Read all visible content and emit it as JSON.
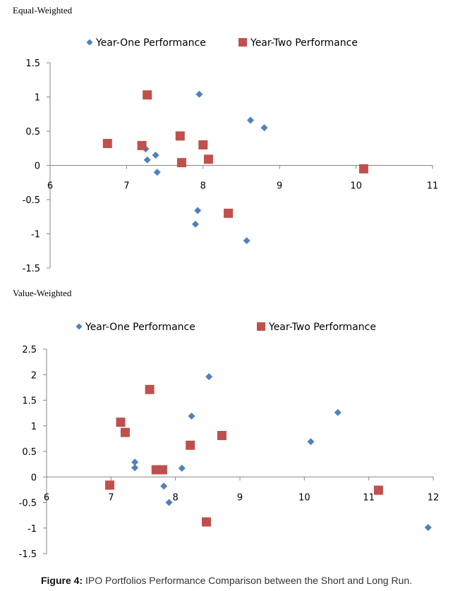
{
  "chart_data": [
    {
      "type": "scatter",
      "title": "Equal-Weighted",
      "xlim": [
        6,
        11
      ],
      "ylim": [
        -1.5,
        1.5
      ],
      "x_ticks": [
        6,
        7,
        8,
        9,
        10,
        11
      ],
      "y_ticks": [
        1.5,
        1,
        0.5,
        0,
        -0.5,
        -1,
        -1.5
      ],
      "legend_position": "top",
      "series": [
        {
          "name": "Year-One Performance",
          "marker": "diamond",
          "color": "#4F81BD",
          "points": [
            {
              "x": 7.95,
              "y": 1.04
            },
            {
              "x": 8.62,
              "y": 0.66
            },
            {
              "x": 8.8,
              "y": 0.55
            },
            {
              "x": 7.25,
              "y": 0.24
            },
            {
              "x": 7.38,
              "y": 0.15
            },
            {
              "x": 7.27,
              "y": 0.08
            },
            {
              "x": 7.4,
              "y": -0.1
            },
            {
              "x": 7.93,
              "y": -0.66
            },
            {
              "x": 7.9,
              "y": -0.86
            },
            {
              "x": 8.57,
              "y": -1.1
            }
          ]
        },
        {
          "name": "Year-Two Performance",
          "marker": "square",
          "color": "#C0504D",
          "points": [
            {
              "x": 7.27,
              "y": 1.03
            },
            {
              "x": 6.75,
              "y": 0.32
            },
            {
              "x": 7.2,
              "y": 0.29
            },
            {
              "x": 7.7,
              "y": 0.43
            },
            {
              "x": 8.0,
              "y": 0.3
            },
            {
              "x": 8.07,
              "y": 0.09
            },
            {
              "x": 7.72,
              "y": 0.04
            },
            {
              "x": 8.33,
              "y": -0.7
            },
            {
              "x": 10.1,
              "y": -0.05
            }
          ]
        }
      ]
    },
    {
      "type": "scatter",
      "title": "Value-Weighted",
      "xlim": [
        6,
        12
      ],
      "ylim": [
        -1.5,
        2.5
      ],
      "x_ticks": [
        6,
        7,
        8,
        9,
        10,
        11,
        12
      ],
      "y_ticks": [
        2.5,
        2,
        1.5,
        1,
        0.5,
        0,
        -0.5,
        -1,
        -1.5
      ],
      "legend_position": "top",
      "series": [
        {
          "name": "Year-One Performance",
          "marker": "diamond",
          "color": "#4F81BD",
          "points": [
            {
              "x": 8.52,
              "y": 1.96
            },
            {
              "x": 8.25,
              "y": 1.19
            },
            {
              "x": 10.52,
              "y": 1.26
            },
            {
              "x": 10.1,
              "y": 0.69
            },
            {
              "x": 7.37,
              "y": 0.29
            },
            {
              "x": 7.37,
              "y": 0.18
            },
            {
              "x": 8.1,
              "y": 0.17
            },
            {
              "x": 7.82,
              "y": -0.18
            },
            {
              "x": 7.9,
              "y": -0.5
            },
            {
              "x": 11.92,
              "y": -0.99
            }
          ]
        },
        {
          "name": "Year-Two Performance",
          "marker": "square",
          "color": "#C0504D",
          "points": [
            {
              "x": 7.6,
              "y": 1.71
            },
            {
              "x": 7.15,
              "y": 1.07
            },
            {
              "x": 7.22,
              "y": 0.87
            },
            {
              "x": 8.23,
              "y": 0.62
            },
            {
              "x": 8.72,
              "y": 0.81
            },
            {
              "x": 7.7,
              "y": 0.14
            },
            {
              "x": 7.8,
              "y": 0.14
            },
            {
              "x": 6.98,
              "y": -0.16
            },
            {
              "x": 8.48,
              "y": -0.88
            },
            {
              "x": 11.15,
              "y": -0.26
            }
          ]
        }
      ]
    }
  ],
  "caption": {
    "label": "Figure 4:",
    "text": " IPO Portfolios Performance Comparison between the Short and Long Run."
  }
}
